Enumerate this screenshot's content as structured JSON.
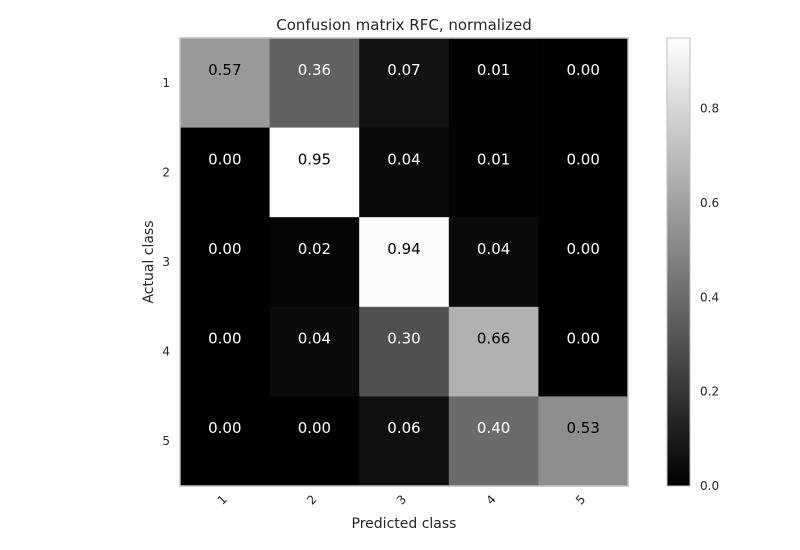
{
  "chart_data": {
    "type": "heatmap",
    "title": "Confusion matrix RFC, normalized",
    "xlabel": "Predicted class",
    "ylabel": "Actual class",
    "x_categories": [
      "1",
      "2",
      "3",
      "4",
      "5"
    ],
    "y_categories": [
      "1",
      "2",
      "3",
      "4",
      "5"
    ],
    "values": [
      [
        0.57,
        0.36,
        0.07,
        0.01,
        0.0
      ],
      [
        0.0,
        0.95,
        0.04,
        0.01,
        0.0
      ],
      [
        0.0,
        0.02,
        0.94,
        0.04,
        0.0
      ],
      [
        0.0,
        0.04,
        0.3,
        0.66,
        0.0
      ],
      [
        0.0,
        0.0,
        0.06,
        0.4,
        0.53
      ]
    ],
    "value_labels": [
      [
        "0.57",
        "0.36",
        "0.07",
        "0.01",
        "0.00"
      ],
      [
        "0.00",
        "0.95",
        "0.04",
        "0.01",
        "0.00"
      ],
      [
        "0.00",
        "0.02",
        "0.94",
        "0.04",
        "0.00"
      ],
      [
        "0.00",
        "0.04",
        "0.30",
        "0.66",
        "0.00"
      ],
      [
        "0.00",
        "0.00",
        "0.06",
        "0.40",
        "0.53"
      ]
    ],
    "colormap": "gray",
    "color_range": [
      0.0,
      0.95
    ],
    "colorbar_ticks": [
      "0.0",
      "0.2",
      "0.4",
      "0.6",
      "0.8"
    ],
    "colorbar_tick_values": [
      0.0,
      0.2,
      0.4,
      0.6,
      0.8
    ],
    "x_tick_rotation": "45 degrees",
    "grid": false,
    "colors": {
      "frame": "#bfbfbf",
      "text_dark": "#000000",
      "text_light": "#ffffff"
    }
  }
}
